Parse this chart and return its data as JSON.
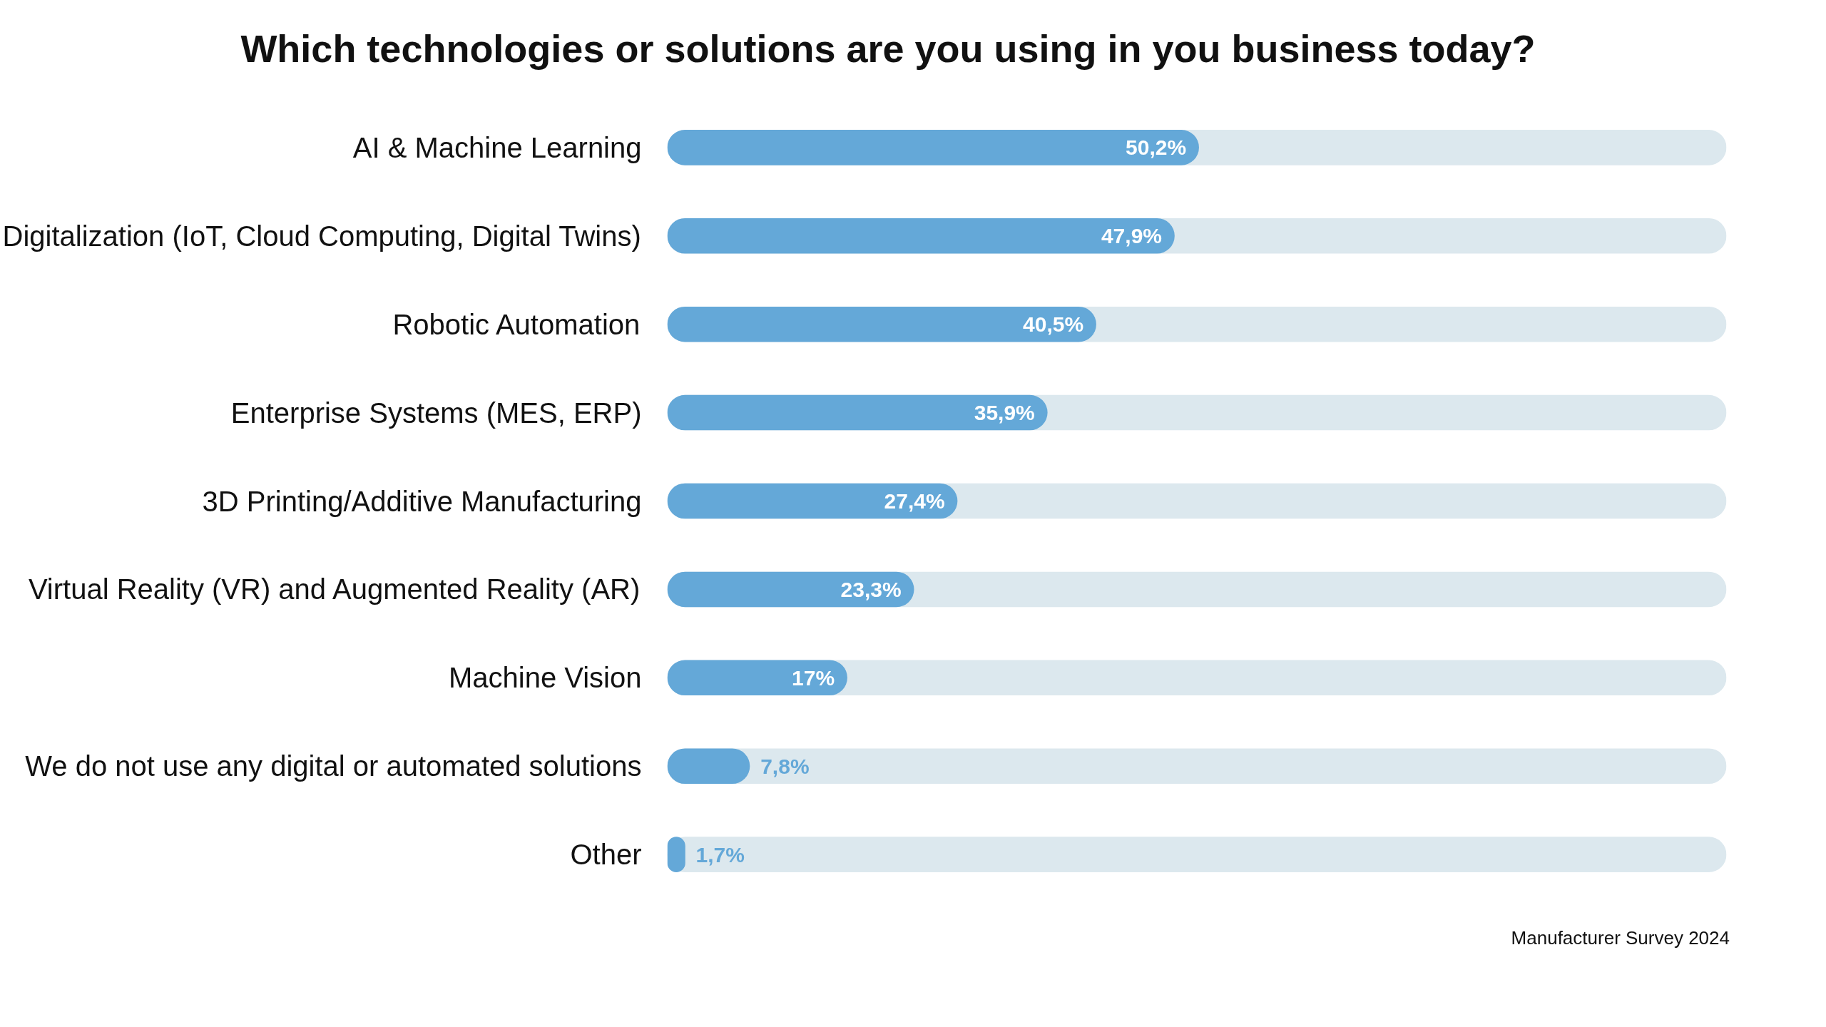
{
  "chart_data": {
    "type": "bar",
    "orientation": "horizontal",
    "title": "Which technologies or solutions are you using in you business today?",
    "categories": [
      "AI & Machine Learning",
      "Digitalization (IoT, Cloud Computing, Digital Twins)",
      "Robotic Automation",
      "Enterprise Systems (MES, ERP)",
      "3D Printing/Additive Manufacturing",
      "Virtual Reality (VR) and Augmented Reality (AR)",
      "Machine Vision",
      "We do not use any digital or automated solutions",
      "Other"
    ],
    "values": [
      50.2,
      47.9,
      40.5,
      35.9,
      27.4,
      23.3,
      17,
      7.8,
      1.7
    ],
    "value_labels": [
      "50,2%",
      "47,9%",
      "40,5%",
      "35,9%",
      "27,4%",
      "23,3%",
      "17%",
      "7,8%",
      "1,7%"
    ],
    "color": "#64a8d8",
    "xlim": [
      0,
      100
    ],
    "tick_labels": "y",
    "annotations": [
      "Manufacturer Survey 2024"
    ]
  }
}
